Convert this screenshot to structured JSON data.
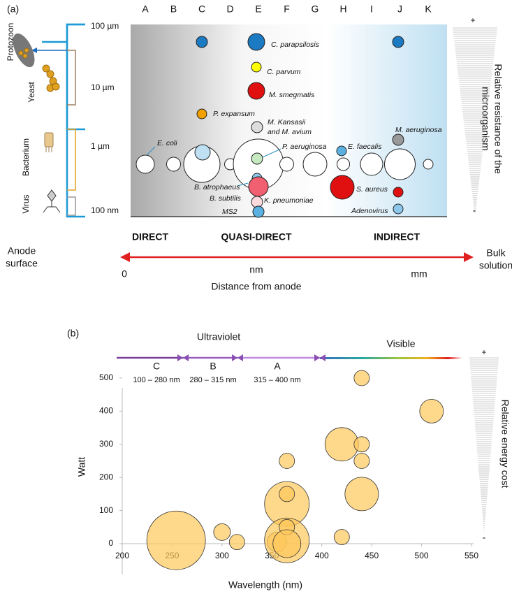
{
  "panel_a": {
    "panel_label": "(a)",
    "columns": [
      "A",
      "B",
      "C",
      "D",
      "E",
      "F",
      "G",
      "H",
      "I",
      "J",
      "K"
    ],
    "size_labels": [
      "100 µm",
      "10 µm",
      "1 µm",
      "100 nm"
    ],
    "organisms": [
      "Protozoon",
      "Yeast",
      "Bacterium",
      "Virus"
    ],
    "species": [
      "C. parapsilosis",
      "C. parvum",
      "M. smegmatis",
      "P. expansum",
      "M. Kansasii",
      "and M. avium",
      "E. coli",
      "P. aeruginosa",
      "E. faecalis",
      "M. aeruginosa",
      "B. atrophaeus",
      "B. subtilis",
      "K. pneumoniae",
      "MS2",
      "S. aureus",
      "Adenovirus"
    ],
    "resistance_label": [
      "Relative resistance of the",
      "microorganism"
    ],
    "plus": "+",
    "minus": "-",
    "zones": [
      "DIRECT",
      "QUASI-DIRECT",
      "INDIRECT"
    ],
    "left_end": [
      "Anode",
      "surface"
    ],
    "right_end": [
      "Bulk",
      "solution"
    ],
    "distance_marks": [
      "0",
      "nm",
      "mm"
    ],
    "distance_label": "Distance from anode"
  },
  "chart_data": {
    "type": "bubble",
    "panel_label": "(b)",
    "x_label": "Wavelength (nm)",
    "y_label": "Watt",
    "xlim": [
      200,
      550
    ],
    "xticks": [
      200,
      250,
      300,
      350,
      400,
      450,
      500,
      550
    ],
    "ylim": [
      0,
      500
    ],
    "yticks": [
      0,
      100,
      200,
      300,
      400,
      500
    ],
    "color": "#fdc85a",
    "x": [
      254,
      300,
      315,
      355,
      365,
      365,
      365,
      365,
      365,
      365,
      420,
      440,
      440,
      440,
      440,
      420,
      510
    ],
    "values": [
      10,
      35,
      5,
      5,
      120,
      10,
      250,
      150,
      50,
      0,
      300,
      500,
      300,
      250,
      150,
      20,
      400
    ],
    "sizes": [
      42,
      12,
      11,
      14,
      32,
      32,
      11,
      11,
      11,
      20,
      24,
      11,
      11,
      11,
      24,
      11,
      17
    ],
    "bands": [
      {
        "name": "C",
        "range": "100 – 280 nm"
      },
      {
        "name": "B",
        "range": "280 – 315 nm"
      },
      {
        "name": "A",
        "range": "315 – 400 nm"
      }
    ],
    "band_groups": [
      "Ultraviolet",
      "Visible"
    ],
    "energy_label": "Relative energy cost",
    "plus": "+",
    "minus": "-"
  }
}
